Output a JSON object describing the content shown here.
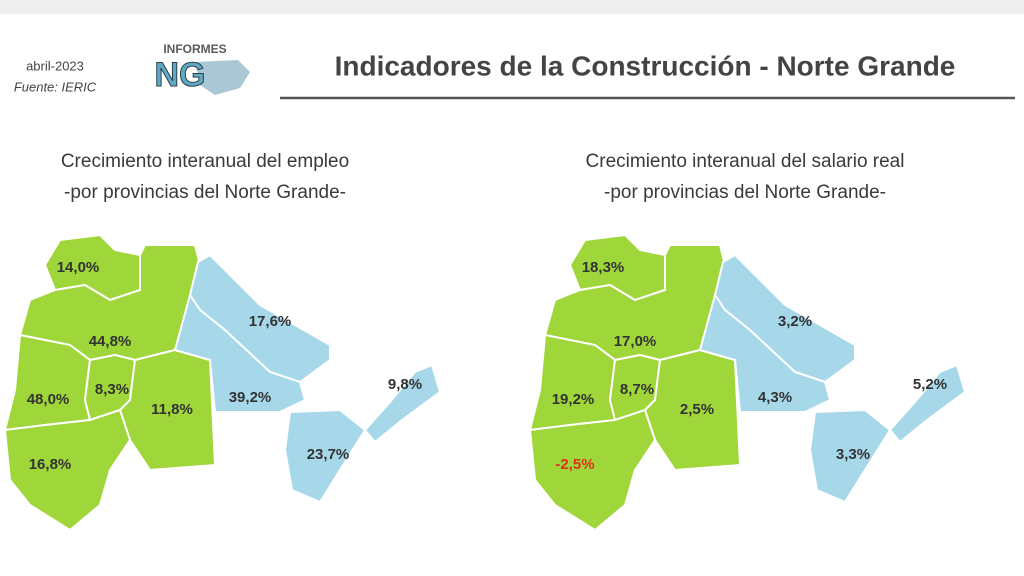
{
  "header": {
    "date": "abril-2023",
    "source": "Fuente: IERIC",
    "logo_top": "INFORMES",
    "logo": "NG",
    "title": "Indicadores de la Construcción - Norte  Grande"
  },
  "maps": [
    {
      "title_line1": "Crecimiento interanual del empleo",
      "title_line2": "-por provincias del Norte Grande-",
      "regions": [
        {
          "label": "14,0%"
        },
        {
          "label": "44,8%"
        },
        {
          "label": "48,0%"
        },
        {
          "label": "8,3%"
        },
        {
          "label": "11,8%"
        },
        {
          "label": "16,8%"
        },
        {
          "label": "17,6%"
        },
        {
          "label": "39,2%"
        },
        {
          "label": "23,7%"
        },
        {
          "label": "9,8%"
        }
      ]
    },
    {
      "title_line1": "Crecimiento interanual del salario real",
      "title_line2": "-por provincias del Norte Grande-",
      "regions": [
        {
          "label": "18,3%"
        },
        {
          "label": "17,0%"
        },
        {
          "label": "19,2%"
        },
        {
          "label": "8,7%"
        },
        {
          "label": "2,5%"
        },
        {
          "label": "-2,5%"
        },
        {
          "label": "3,2%"
        },
        {
          "label": "4,3%"
        },
        {
          "label": "3,3%"
        },
        {
          "label": "5,2%"
        }
      ]
    }
  ]
}
